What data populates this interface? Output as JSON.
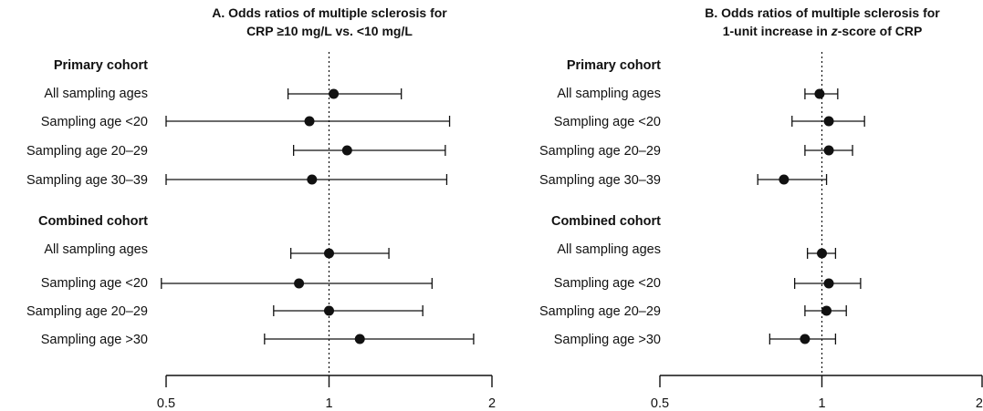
{
  "chart_data": [
    {
      "type": "forest",
      "title_lines": [
        [
          {
            "t": "A. Odds ratios of multiple sclerosis for"
          }
        ],
        [
          {
            "t": "CRP ≥10 mg/L vs. <10 mg/L"
          }
        ]
      ],
      "x_scale": "log",
      "xlim": [
        0.5,
        2
      ],
      "xticks": [
        {
          "value": 0.5,
          "label": "0.5"
        },
        {
          "value": 1,
          "label": "1"
        },
        {
          "value": 2,
          "label": "2"
        }
      ],
      "reference_line": 1,
      "groups": [
        {
          "label": "Primary cohort",
          "rows": [
            {
              "label": "All sampling ages",
              "or": 1.02,
              "lo": 0.84,
              "hi": 1.36
            },
            {
              "label": "Sampling age <20",
              "or": 0.92,
              "lo": 0.5,
              "hi": 1.67
            },
            {
              "label": "Sampling age 20–29",
              "or": 1.08,
              "lo": 0.86,
              "hi": 1.64
            },
            {
              "label": "Sampling age 30–39",
              "or": 0.93,
              "lo": 0.5,
              "hi": 1.65
            }
          ]
        },
        {
          "label": "Combined cohort",
          "rows": [
            {
              "label": "All sampling ages",
              "or": 1.0,
              "lo": 0.85,
              "hi": 1.29
            },
            {
              "label": "Sampling age <20",
              "or": 0.88,
              "lo": 0.49,
              "hi": 1.55
            },
            {
              "label": "Sampling age 20–29",
              "or": 1.0,
              "lo": 0.79,
              "hi": 1.49
            },
            {
              "label": "Sampling age >30",
              "or": 1.14,
              "lo": 0.76,
              "hi": 1.85
            }
          ]
        }
      ]
    },
    {
      "type": "forest",
      "title_lines": [
        [
          {
            "t": "B. Odds ratios of multiple sclerosis for"
          }
        ],
        [
          {
            "t": "1-unit increase in "
          },
          {
            "t": "z",
            "italic": true
          },
          {
            "t": "-score of CRP"
          }
        ]
      ],
      "x_scale": "log",
      "xlim": [
        0.5,
        2
      ],
      "xticks": [
        {
          "value": 0.5,
          "label": "0.5"
        },
        {
          "value": 1,
          "label": "1"
        },
        {
          "value": 2,
          "label": "2"
        }
      ],
      "reference_line": 1,
      "groups": [
        {
          "label": "Primary cohort",
          "rows": [
            {
              "label": "All sampling ages",
              "or": 0.99,
              "lo": 0.93,
              "hi": 1.07
            },
            {
              "label": "Sampling age <20",
              "or": 1.03,
              "lo": 0.88,
              "hi": 1.2
            },
            {
              "label": "Sampling age 20–29",
              "or": 1.03,
              "lo": 0.93,
              "hi": 1.14
            },
            {
              "label": "Sampling age 30–39",
              "or": 0.85,
              "lo": 0.76,
              "hi": 1.02
            }
          ]
        },
        {
          "label": "Combined cohort",
          "rows": [
            {
              "label": "All sampling ages",
              "or": 1.0,
              "lo": 0.94,
              "hi": 1.06
            },
            {
              "label": "Sampling age <20",
              "or": 1.03,
              "lo": 0.89,
              "hi": 1.18
            },
            {
              "label": "Sampling age 20–29",
              "or": 1.02,
              "lo": 0.93,
              "hi": 1.11
            },
            {
              "label": "Sampling age >30",
              "or": 0.93,
              "lo": 0.8,
              "hi": 1.06
            }
          ]
        }
      ]
    }
  ]
}
